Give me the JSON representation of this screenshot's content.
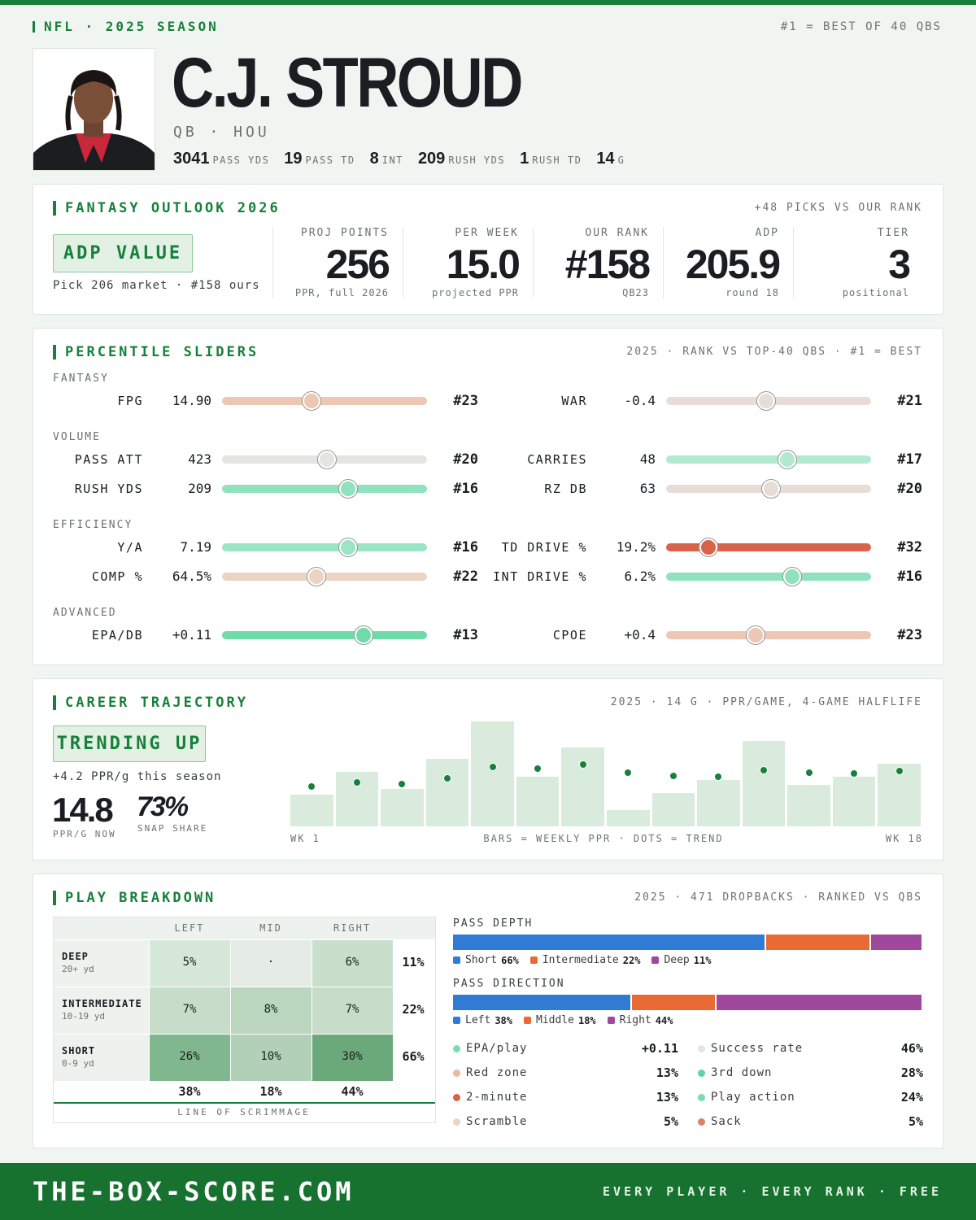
{
  "header": {
    "league": "NFL · 2025 SEASON",
    "note": "#1 = BEST OF 40 QBS",
    "name": "C.J. STROUD",
    "position": "QB · HOU",
    "stats": [
      {
        "value": "3041",
        "label": "PASS YDS"
      },
      {
        "value": "19",
        "label": "PASS TD"
      },
      {
        "value": "8",
        "label": "INT"
      },
      {
        "value": "209",
        "label": "RUSH YDS"
      },
      {
        "value": "1",
        "label": "RUSH TD"
      },
      {
        "value": "14",
        "label": "G"
      }
    ]
  },
  "outlook": {
    "title": "FANTASY OUTLOOK 2026",
    "note": "+48 PICKS VS OUR RANK",
    "badge": "ADP VALUE",
    "badge_note": "Pick 206 market · #158 ours",
    "metrics": [
      {
        "label": "PROJ POINTS",
        "value": "256",
        "sub": "PPR, full 2026"
      },
      {
        "label": "PER WEEK",
        "value": "15.0",
        "sub": "projected PPR"
      },
      {
        "label": "OUR RANK",
        "value": "#158",
        "sub": "QB23"
      },
      {
        "label": "ADP",
        "value": "205.9",
        "sub": "round 18"
      },
      {
        "label": "TIER",
        "value": "3",
        "sub": "positional"
      }
    ]
  },
  "percentiles": {
    "title": "PERCENTILE SLIDERS",
    "note": "2025 · RANK VS TOP-40 QBS · #1 = BEST",
    "rank_lim": [
      40,
      1
    ],
    "groups": [
      {
        "name": "FANTASY",
        "rows": [
          {
            "label": "FPG",
            "value": "14.90",
            "rank": {
              "value": 23,
              "label": "#23"
            },
            "color": "#ecc8b4"
          },
          {
            "label": "WAR",
            "value": "-0.4",
            "rank": {
              "value": 21,
              "label": "#21"
            },
            "color": "#e8ddd6"
          }
        ]
      },
      {
        "name": "VOLUME",
        "rows": [
          {
            "label": "PASS ATT",
            "value": "423",
            "rank": {
              "value": 20,
              "label": "#20"
            },
            "color": "#e4e5e0"
          },
          {
            "label": "CARRIES",
            "value": "48",
            "rank": {
              "value": 17,
              "label": "#17"
            },
            "color": "#b2e9cf"
          },
          {
            "label": "RUSH YDS",
            "value": "209",
            "rank": {
              "value": 16,
              "label": "#16"
            },
            "color": "#8fe2bd"
          },
          {
            "label": "RZ DB",
            "value": "63",
            "rank": {
              "value": 20,
              "label": "#20"
            },
            "color": "#e8ddd6"
          }
        ]
      },
      {
        "name": "EFFICIENCY",
        "rows": [
          {
            "label": "Y/A",
            "value": "7.19",
            "rank": {
              "value": 16,
              "label": "#16"
            },
            "color": "#9ae5c3"
          },
          {
            "label": "TD DRIVE %",
            "value": "19.2%",
            "rank": {
              "value": 32,
              "label": "#32"
            },
            "color": "#d9634a"
          },
          {
            "label": "COMP %",
            "value": "64.5%",
            "rank": {
              "value": 22,
              "label": "#22"
            },
            "color": "#ecd3c4"
          },
          {
            "label": "INT DRIVE %",
            "value": "6.2%",
            "rank": {
              "value": 16,
              "label": "#16"
            },
            "color": "#8fe2bd"
          }
        ]
      },
      {
        "name": "ADVANCED",
        "rows": [
          {
            "label": "EPA/DB",
            "value": "+0.11",
            "rank": {
              "value": 13,
              "label": "#13"
            },
            "color": "#6fdbaa"
          },
          {
            "label": "CPOE",
            "value": "+0.4",
            "rank": {
              "value": 23,
              "label": "#23"
            },
            "color": "#ecc8b4"
          }
        ]
      }
    ]
  },
  "trajectory": {
    "title": "CAREER TRAJECTORY",
    "note": "2025 · 14 G · PPR/GAME, 4-GAME HALFLIFE",
    "badge": "TRENDING UP",
    "badge_note": "+4.2 PPR/g this season",
    "stat_now": {
      "value": "14.8",
      "label": "PPR/G NOW"
    },
    "stat_snap": {
      "value": "73%",
      "label": "SNAP SHARE"
    },
    "chart": {
      "type": "bar",
      "ylim": [
        0,
        30
      ],
      "weekly_ppr": [
        8.5,
        14.6,
        10.0,
        18.1,
        28.1,
        13.3,
        21.1,
        4.4,
        8.9,
        12.4,
        22.9,
        11.1,
        13.3,
        16.8
      ],
      "trend": [
        10.7,
        11.8,
        11.3,
        12.9,
        15.9,
        15.5,
        16.6,
        14.4,
        13.5,
        13.3,
        15.0,
        14.4,
        14.2,
        14.8
      ],
      "bar_color": "#d8ebdd",
      "dot_color": "#17803a",
      "x_start": "WK 1",
      "x_note": "BARS = WEEKLY PPR · DOTS = TREND",
      "x_end": "WK 18"
    }
  },
  "breakdown": {
    "title": "PLAY BREAKDOWN",
    "note": "2025 · 471 DROPBACKS · RANKED VS QBS",
    "grid": {
      "columns": [
        "LEFT",
        "MID",
        "RIGHT"
      ],
      "rows": [
        {
          "name": "DEEP",
          "range": "20+ yd",
          "cells": [
            "5%",
            "·",
            "6%"
          ],
          "colors": [
            "#d6e8d8",
            "#e4ece5",
            "#c9dfcc"
          ],
          "total": "11%"
        },
        {
          "name": "INTERMEDIATE",
          "range": "10-19 yd",
          "cells": [
            "7%",
            "8%",
            "7%"
          ],
          "colors": [
            "#c7ddca",
            "#bad6bf",
            "#c7ddca"
          ],
          "total": "22%"
        },
        {
          "name": "SHORT",
          "range": "0-9 yd",
          "cells": [
            "26%",
            "10%",
            "30%"
          ],
          "colors": [
            "#81b78e",
            "#b2d0b8",
            "#6ba97b"
          ],
          "total": "66%"
        }
      ],
      "totals": [
        "38%",
        "18%",
        "44%"
      ],
      "footer": "LINE OF SCRIMMAGE"
    },
    "depth": {
      "title": "PASS DEPTH",
      "segments": [
        {
          "name": "Short",
          "value": 66,
          "label": "66%",
          "color": "#2f7bd6"
        },
        {
          "name": "Intermediate",
          "value": 22,
          "label": "22%",
          "color": "#e86a35"
        },
        {
          "name": "Deep",
          "value": 11,
          "label": "11%",
          "color": "#a0479e"
        }
      ]
    },
    "direction": {
      "title": "PASS DIRECTION",
      "segments": [
        {
          "name": "Left",
          "value": 38,
          "label": "38%",
          "color": "#2f7bd6"
        },
        {
          "name": "Middle",
          "value": 18,
          "label": "18%",
          "color": "#e86a35"
        },
        {
          "name": "Right",
          "value": 44,
          "label": "44%",
          "color": "#a0479e"
        }
      ]
    },
    "stats": [
      {
        "label": "EPA/play",
        "value": "+0.11",
        "color": "#7ddbb0"
      },
      {
        "label": "Success rate",
        "value": "46%",
        "color": "#dfe8df"
      },
      {
        "label": "Red zone",
        "value": "13%",
        "color": "#eeb89a"
      },
      {
        "label": "3rd down",
        "value": "28%",
        "color": "#5fd3a3"
      },
      {
        "label": "2-minute",
        "value": "13%",
        "color": "#d9634a"
      },
      {
        "label": "Play action",
        "value": "24%",
        "color": "#7ddbb0"
      },
      {
        "label": "Scramble",
        "value": "5%",
        "color": "#ecd3c4"
      },
      {
        "label": "Sack",
        "value": "5%",
        "color": "#e0806a"
      }
    ]
  },
  "footer": {
    "site": "THE-BOX-SCORE.COM",
    "tagline": "EVERY PLAYER · EVERY RANK · FREE"
  }
}
